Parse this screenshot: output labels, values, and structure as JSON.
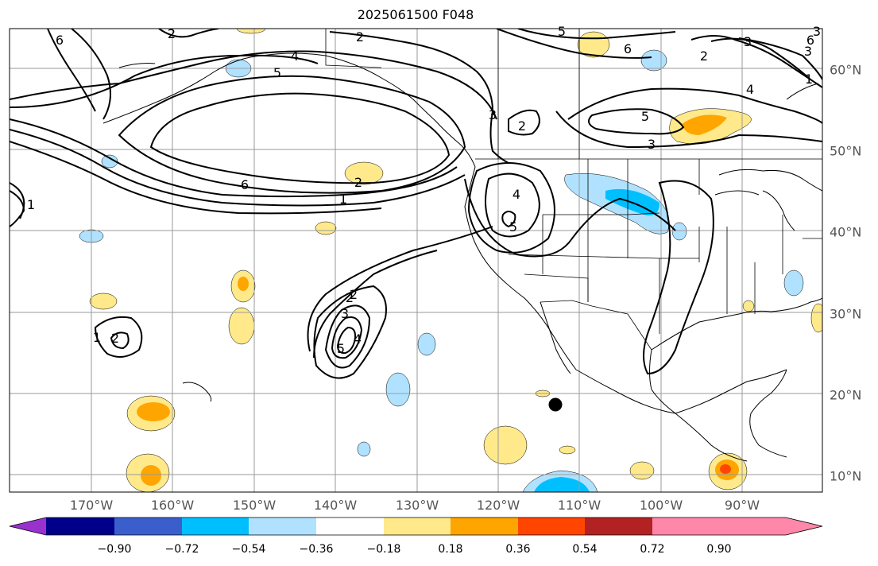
{
  "title": "2025061500 F048",
  "longitude_labels": [
    "170°W",
    "160°W",
    "150°W",
    "140°W",
    "130°W",
    "120°W",
    "110°W",
    "100°W",
    "90°W"
  ],
  "latitude_labels": [
    "60°N",
    "50°N",
    "40°N",
    "30°N",
    "20°N",
    "10°N"
  ],
  "colorbar": {
    "tick_labels": [
      "−0.90",
      "−0.72",
      "−0.54",
      "−0.36",
      "−0.18",
      "0.18",
      "0.36",
      "0.54",
      "0.72",
      "0.90"
    ],
    "colors": [
      "#9932cc",
      "#00008b",
      "#3a5fcd",
      "#00bfff",
      "#b0e2ff",
      "#ffffff",
      "#ffe98a",
      "#ffa500",
      "#ff4500",
      "#b22222",
      "#ff88aa"
    ]
  },
  "contour_labels": [
    "6",
    "2",
    "4",
    "5",
    "6",
    "1",
    "2",
    "2",
    "3",
    "2",
    "5",
    "3",
    "6",
    "5",
    "3",
    "4",
    "3",
    "2",
    "6",
    "3",
    "5",
    "1",
    "2",
    "4",
    "2",
    "3",
    "4",
    "5",
    "1",
    "2",
    "1"
  ]
}
